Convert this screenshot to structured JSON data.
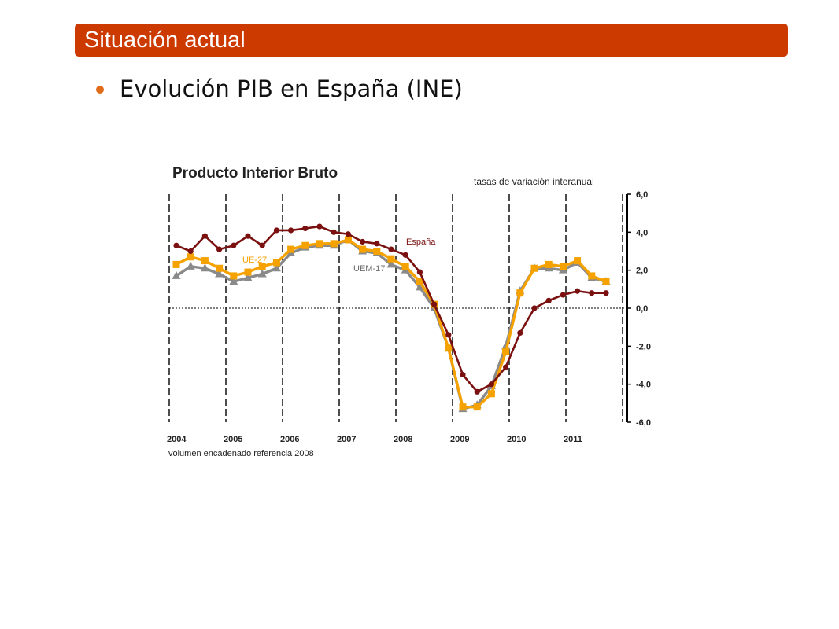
{
  "slide": {
    "header": "Situación actual",
    "bullet": "Evolución PIB en España (INE)"
  },
  "colors": {
    "header_bg": "#cc3a00",
    "bullet": "#e06c1a",
    "espana": "#7a1010",
    "ue27": "#f5a200",
    "uem17": "#8a8a8a"
  },
  "chart_data": {
    "type": "line",
    "title": "Producto Interior Bruto",
    "subtitle": "tasas de variación interanual",
    "note": "volumen encadenado referencia 2008",
    "x_tick_labels": [
      "2004",
      "2005",
      "2006",
      "2007",
      "2008",
      "2009",
      "2010",
      "2011"
    ],
    "y_ticks": [
      "6,0",
      "4,0",
      "2,0",
      "0,0",
      "-2,0",
      "-4,0",
      "-6,0"
    ],
    "ylim": [
      -6,
      6
    ],
    "y_axis_side": "right",
    "grid": "vertical dashed lines at year boundaries, dotted zero line",
    "x": [
      "2004 Q1",
      "2004 Q2",
      "2004 Q3",
      "2004 Q4",
      "2005 Q1",
      "2005 Q2",
      "2005 Q3",
      "2005 Q4",
      "2006 Q1",
      "2006 Q2",
      "2006 Q3",
      "2006 Q4",
      "2007 Q1",
      "2007 Q2",
      "2007 Q3",
      "2007 Q4",
      "2008 Q1",
      "2008 Q2",
      "2008 Q3",
      "2008 Q4",
      "2009 Q1",
      "2009 Q2",
      "2009 Q3",
      "2009 Q4",
      "2010 Q1",
      "2010 Q2",
      "2010 Q3",
      "2010 Q4",
      "2011 Q1",
      "2011 Q2",
      "2011 Q3"
    ],
    "series": [
      {
        "name": "España",
        "color": "#7a1010",
        "marker": "circle",
        "values": [
          3.3,
          3.0,
          3.8,
          3.1,
          3.3,
          3.8,
          3.3,
          4.1,
          4.1,
          4.2,
          4.3,
          4.0,
          3.9,
          3.5,
          3.4,
          3.1,
          2.8,
          1.9,
          0.2,
          -1.4,
          -3.5,
          -4.4,
          -4.0,
          -3.1,
          -1.3,
          0.0,
          0.4,
          0.7,
          0.9,
          0.8,
          0.8
        ]
      },
      {
        "name": "UE-27",
        "color": "#f5a200",
        "marker": "square",
        "values": [
          2.3,
          2.7,
          2.5,
          2.1,
          1.7,
          1.9,
          2.2,
          2.4,
          3.1,
          3.3,
          3.4,
          3.4,
          3.6,
          3.1,
          3.0,
          2.6,
          2.2,
          1.4,
          0.2,
          -2.1,
          -5.2,
          -5.2,
          -4.5,
          -2.3,
          0.8,
          2.1,
          2.3,
          2.2,
          2.5,
          1.7,
          1.4
        ]
      },
      {
        "name": "UEM-17",
        "color": "#8a8a8a",
        "marker": "triangle",
        "values": [
          1.7,
          2.2,
          2.1,
          1.8,
          1.4,
          1.6,
          1.8,
          2.1,
          2.9,
          3.2,
          3.3,
          3.3,
          3.6,
          3.0,
          2.9,
          2.3,
          2.0,
          1.1,
          0.0,
          -2.1,
          -5.3,
          -5.1,
          -4.1,
          -2.0,
          0.9,
          2.1,
          2.1,
          2.0,
          2.4,
          1.6,
          1.4
        ]
      }
    ]
  }
}
